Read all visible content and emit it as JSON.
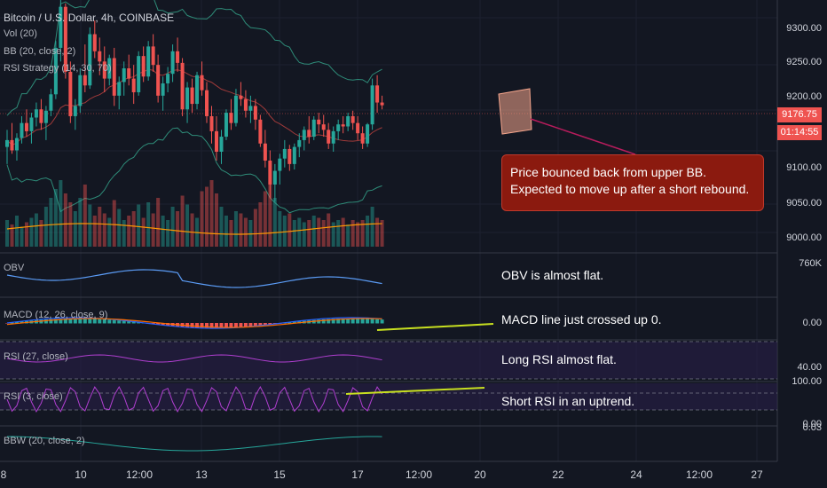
{
  "header": {
    "symbol_title": "Bitcoin / U.S. Dollar, 4h, COINBASE",
    "ind_vol": "Vol (20)",
    "ind_bb": "BB (20, close, 2)",
    "ind_rsi_strategy": "RSI Strategy (14, 30, 70)"
  },
  "price_axis": {
    "ticks": [
      "9300.00",
      "9250.00",
      "9200.00",
      "9100.00",
      "9050.00",
      "9000.00"
    ],
    "last_price": "9176.75",
    "countdown": "01:14:55",
    "last_price_color": "#ef5350"
  },
  "panes": {
    "obv": {
      "title": "OBV",
      "axis_label": "760K",
      "note": "OBV is almost flat."
    },
    "macd": {
      "title": "MACD (12, 26, close, 9)",
      "axis_label": "0.00",
      "note": "MACD line just crossed up 0."
    },
    "rsi_long": {
      "title": "RSI (27, close)",
      "axis_label": "40.00",
      "note": "Long RSI almost flat."
    },
    "rsi_short": {
      "title": "RSI (3, close)",
      "axis_label_top": "100.00",
      "axis_label_bottom": "0.00",
      "note": "Short RSI in an uptrend."
    },
    "bbw": {
      "title": "BBW (20, close, 2)",
      "axis_label": "0.03"
    }
  },
  "callout": {
    "line1": "Price bounced back from upper BB.",
    "line2": "Expected to move up after a short rebound."
  },
  "time_axis": {
    "ticks": [
      "8",
      "10",
      "12:00",
      "13",
      "15",
      "17",
      "12:00",
      "20",
      "22",
      "24",
      "12:00",
      "27"
    ]
  },
  "colors": {
    "background": "#131722",
    "up": "#26a69a",
    "down": "#ef5350",
    "bb_band": "#2e8b78",
    "bb_mid": "#a03a3a",
    "rsi": "#b03fd0",
    "callout_bg": "#8b1a0f",
    "trendline": "#c8e020"
  },
  "chart_data": {
    "type": "candlestick",
    "title": "Bitcoin / U.S. Dollar, 4h, COINBASE",
    "ylim": [
      8960,
      9330
    ],
    "candles": [
      [
        9115,
        9140,
        9090,
        9125
      ],
      [
        9125,
        9150,
        9105,
        9110
      ],
      [
        9110,
        9135,
        9095,
        9128
      ],
      [
        9128,
        9160,
        9120,
        9150
      ],
      [
        9150,
        9170,
        9130,
        9138
      ],
      [
        9138,
        9165,
        9120,
        9158
      ],
      [
        9158,
        9180,
        9145,
        9170
      ],
      [
        9170,
        9185,
        9140,
        9150
      ],
      [
        9150,
        9175,
        9125,
        9168
      ],
      [
        9168,
        9200,
        9160,
        9192
      ],
      [
        9192,
        9270,
        9185,
        9260
      ],
      [
        9260,
        9330,
        9240,
        9320
      ],
      [
        9320,
        9325,
        9215,
        9225
      ],
      [
        9225,
        9240,
        9150,
        9160
      ],
      [
        9160,
        9185,
        9140,
        9175
      ],
      [
        9175,
        9230,
        9165,
        9220
      ],
      [
        9220,
        9265,
        9195,
        9205
      ],
      [
        9205,
        9290,
        9200,
        9280
      ],
      [
        9280,
        9300,
        9245,
        9255
      ],
      [
        9255,
        9275,
        9220,
        9240
      ],
      [
        9240,
        9262,
        9195,
        9215
      ],
      [
        9215,
        9250,
        9205,
        9245
      ],
      [
        9245,
        9260,
        9175,
        9190
      ],
      [
        9190,
        9218,
        9170,
        9210
      ],
      [
        9210,
        9240,
        9190,
        9230
      ],
      [
        9230,
        9250,
        9205,
        9215
      ],
      [
        9215,
        9235,
        9178,
        9195
      ],
      [
        9195,
        9255,
        9190,
        9248
      ],
      [
        9248,
        9262,
        9210,
        9218
      ],
      [
        9218,
        9270,
        9212,
        9262
      ],
      [
        9262,
        9280,
        9225,
        9235
      ],
      [
        9235,
        9250,
        9180,
        9190
      ],
      [
        9190,
        9218,
        9168,
        9208
      ],
      [
        9208,
        9232,
        9195,
        9222
      ],
      [
        9222,
        9265,
        9210,
        9255
      ],
      [
        9255,
        9275,
        9225,
        9238
      ],
      [
        9238,
        9245,
        9160,
        9170
      ],
      [
        9170,
        9210,
        9150,
        9202
      ],
      [
        9202,
        9215,
        9165,
        9178
      ],
      [
        9178,
        9225,
        9170,
        9220
      ],
      [
        9220,
        9240,
        9190,
        9198
      ],
      [
        9198,
        9210,
        9150,
        9160
      ],
      [
        9160,
        9175,
        9120,
        9138
      ],
      [
        9138,
        9160,
        9095,
        9108
      ],
      [
        9108,
        9140,
        9090,
        9130
      ],
      [
        9130,
        9170,
        9125,
        9165
      ],
      [
        9165,
        9185,
        9140,
        9150
      ],
      [
        9150,
        9200,
        9145,
        9190
      ],
      [
        9190,
        9210,
        9175,
        9185
      ],
      [
        9185,
        9198,
        9158,
        9168
      ],
      [
        9168,
        9190,
        9150,
        9175
      ],
      [
        9175,
        9185,
        9140,
        9155
      ],
      [
        9155,
        9162,
        9115,
        9120
      ],
      [
        9120,
        9140,
        9085,
        9095
      ],
      [
        9095,
        9110,
        9040,
        9060
      ],
      [
        9060,
        9090,
        9035,
        9080
      ],
      [
        9080,
        9105,
        9060,
        9098
      ],
      [
        9098,
        9125,
        9085,
        9112
      ],
      [
        9112,
        9118,
        9080,
        9090
      ],
      [
        9090,
        9120,
        9082,
        9115
      ],
      [
        9115,
        9135,
        9100,
        9125
      ],
      [
        9125,
        9145,
        9110,
        9140
      ],
      [
        9140,
        9160,
        9120,
        9130
      ],
      [
        9130,
        9160,
        9125,
        9155
      ],
      [
        9155,
        9165,
        9135,
        9148
      ],
      [
        9148,
        9162,
        9130,
        9140
      ],
      [
        9140,
        9150,
        9112,
        9120
      ],
      [
        9120,
        9145,
        9108,
        9138
      ],
      [
        9138,
        9155,
        9125,
        9148
      ],
      [
        9148,
        9160,
        9135,
        9145
      ],
      [
        9145,
        9165,
        9138,
        9160
      ],
      [
        9160,
        9168,
        9140,
        9150
      ],
      [
        9150,
        9160,
        9125,
        9135
      ],
      [
        9135,
        9145,
        9112,
        9120
      ],
      [
        9120,
        9150,
        9115,
        9148
      ],
      [
        9148,
        9215,
        9140,
        9205
      ],
      [
        9205,
        9220,
        9165,
        9180
      ],
      [
        9180,
        9190,
        9170,
        9176
      ]
    ],
    "volume": [
      12,
      10,
      14,
      9,
      11,
      13,
      15,
      12,
      18,
      22,
      26,
      30,
      24,
      20,
      16,
      22,
      28,
      19,
      14,
      18,
      15,
      13,
      21,
      17,
      12,
      14,
      16,
      19,
      13,
      20,
      15,
      22,
      14,
      12,
      18,
      16,
      23,
      19,
      15,
      13,
      25,
      27,
      30,
      24,
      18,
      14,
      12,
      16,
      15,
      13,
      12,
      17,
      20,
      25,
      28,
      22,
      16,
      14,
      15,
      12,
      13,
      11,
      12,
      14,
      13,
      12,
      15,
      11,
      12,
      13,
      10,
      12,
      11,
      12,
      14,
      18,
      13,
      12
    ],
    "annotation_box": {
      "x_range": [
        "20",
        "21"
      ],
      "y_range": [
        9150,
        9215
      ]
    }
  }
}
